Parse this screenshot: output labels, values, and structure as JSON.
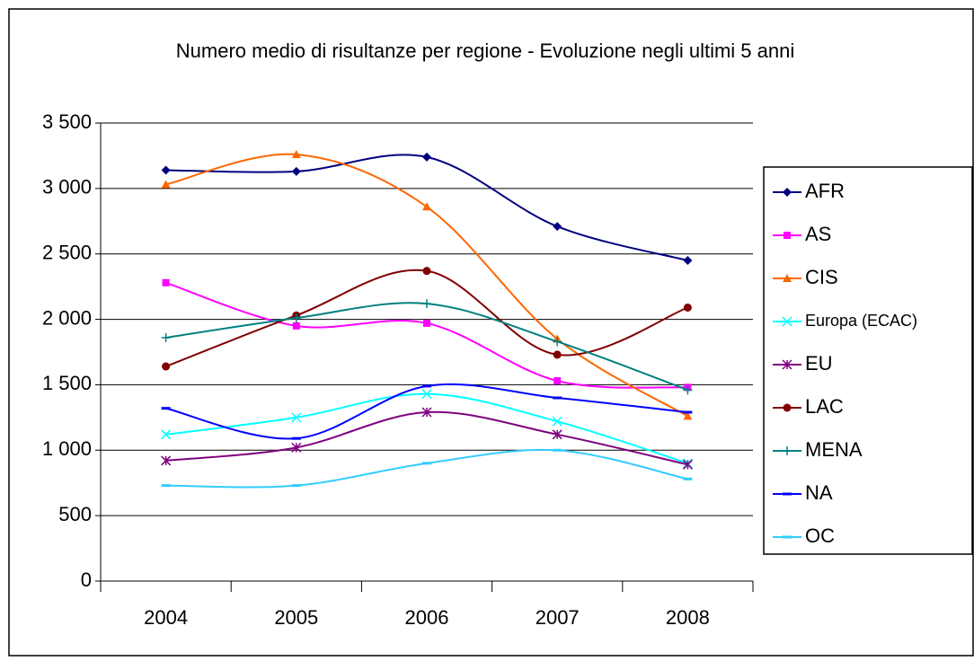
{
  "chart_data": {
    "type": "line",
    "title": "Numero medio di risultanze per regione - Evoluzione negli ultimi 5 anni",
    "categories": [
      "2004",
      "2005",
      "2006",
      "2007",
      "2008"
    ],
    "ylim": [
      0,
      3500
    ],
    "yticks": [
      0,
      500,
      {
        "value": 1000,
        "label": "1 000"
      },
      {
        "value": 1500,
        "label": "1 500"
      },
      {
        "value": 2000,
        "label": "2 000"
      },
      {
        "value": 2500,
        "label": "2 500"
      },
      {
        "value": 3000,
        "label": "3 000"
      },
      {
        "value": 3500,
        "label": "3 500"
      }
    ],
    "grid": true,
    "smooth": true,
    "legend": "right",
    "series": [
      {
        "name": "AFR",
        "color": "#000080",
        "marker": "diamond",
        "values": [
          3140,
          3130,
          3240,
          2710,
          2450
        ]
      },
      {
        "name": "AS",
        "color": "#ff00ff",
        "marker": "square",
        "values": [
          2280,
          1950,
          1970,
          1530,
          1480
        ]
      },
      {
        "name": "CIS",
        "color": "#ff6600",
        "marker": "triangle",
        "values": [
          3030,
          3260,
          2860,
          1850,
          1260
        ]
      },
      {
        "name": "Europa (ECAC)",
        "color": "#00ffff",
        "marker": "x",
        "values": [
          1120,
          1250,
          1430,
          1220,
          900
        ]
      },
      {
        "name": "EU",
        "color": "#800080",
        "marker": "star",
        "values": [
          920,
          1020,
          1290,
          1120,
          890
        ]
      },
      {
        "name": "LAC",
        "color": "#800000",
        "marker": "circle",
        "values": [
          1640,
          2030,
          2370,
          1730,
          2090
        ]
      },
      {
        "name": "MENA",
        "color": "#008080",
        "marker": "plus",
        "values": [
          1860,
          2010,
          2120,
          1830,
          1460
        ]
      },
      {
        "name": "NA",
        "color": "#0000ff",
        "marker": "dash",
        "values": [
          1320,
          1090,
          1490,
          1400,
          1290
        ]
      },
      {
        "name": "OC",
        "color": "#33ccff",
        "marker": "dash",
        "values": [
          730,
          730,
          900,
          1000,
          780
        ]
      }
    ]
  }
}
